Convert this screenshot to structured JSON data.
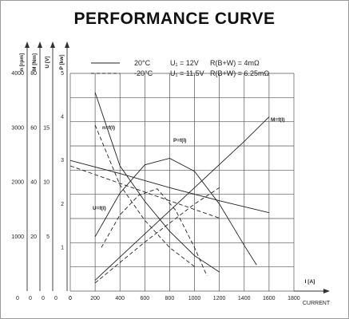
{
  "chart_data": {
    "type": "line",
    "title": "PERFORMANCE CURVE",
    "xlabel_unit": "I [A]",
    "xlabel": "CURRENT",
    "x_ticks": [
      "0",
      "200",
      "400",
      "600",
      "800",
      "1000",
      "1200",
      "1400",
      "1600",
      "1800"
    ],
    "xlim": [
      0,
      1800
    ],
    "y_axes": [
      {
        "label": "n [rpm]",
        "ticks": [
          "1000",
          "2000",
          "3000",
          "4000"
        ],
        "range": [
          0,
          4000
        ]
      },
      {
        "label": "M [Nm]",
        "ticks": [
          "20",
          "40",
          "60",
          "80"
        ],
        "range": [
          0,
          80
        ]
      },
      {
        "label": "U [V]",
        "ticks": [
          "5",
          "10",
          "15"
        ],
        "range": [
          0,
          20
        ]
      },
      {
        "label": "P [kw]",
        "ticks": [
          "1",
          "2",
          "3",
          "4",
          "5"
        ],
        "range": [
          0,
          5
        ]
      }
    ],
    "legend": [
      {
        "temp": "20°C",
        "voltage": "U₁ = 12V",
        "resistance": "R(B+W) = 4mΩ",
        "style": "solid"
      },
      {
        "temp": "-20°C",
        "voltage": "U₁ = 11.5V",
        "resistance": "R(B+W) = 6.25mΩ",
        "style": "dashed"
      }
    ],
    "series": [
      {
        "name": "n=f(I)",
        "axis": "n [rpm]",
        "style": "solid",
        "x": [
          200,
          400,
          600,
          800,
          1000,
          1200
        ],
        "y": [
          3650,
          2300,
          1650,
          1100,
          650,
          350
        ]
      },
      {
        "name": "n=f(I)",
        "axis": "n [rpm]",
        "style": "dashed",
        "x": [
          200,
          400,
          600,
          800,
          1000
        ],
        "y": [
          3050,
          1950,
          1300,
          800,
          450
        ]
      },
      {
        "name": "M=f(I)",
        "axis": "M [Nm]",
        "style": "solid",
        "x": [
          200,
          600,
          1000,
          1400,
          1600
        ],
        "y": [
          4,
          21,
          38,
          55,
          64
        ]
      },
      {
        "name": "M=f(I)",
        "axis": "M [Nm]",
        "style": "dashed",
        "x": [
          200,
          600,
          1000,
          1200
        ],
        "y": [
          3,
          18,
          32,
          38
        ]
      },
      {
        "name": "U=f(I)",
        "axis": "U [V]",
        "style": "solid",
        "x": [
          0,
          400,
          800,
          1200,
          1600
        ],
        "y": [
          12,
          10.8,
          9.5,
          8.3,
          7.2
        ]
      },
      {
        "name": "U=f(I)",
        "axis": "U [V]",
        "style": "dashed",
        "x": [
          0,
          400,
          800,
          1200
        ],
        "y": [
          11.5,
          9.9,
          8.3,
          6.7
        ]
      },
      {
        "name": "P=f(I)",
        "axis": "P [kw]",
        "style": "solid",
        "x": [
          200,
          400,
          600,
          800,
          1000,
          1200,
          1400,
          1500
        ],
        "y": [
          1.25,
          2.25,
          2.9,
          3.05,
          2.75,
          2.0,
          1.05,
          0.6
        ]
      },
      {
        "name": "P=f(I)",
        "axis": "P [kw]",
        "style": "dashed",
        "x": [
          250,
          400,
          550,
          700,
          850,
          1000,
          1100
        ],
        "y": [
          1.0,
          1.75,
          2.2,
          2.35,
          1.85,
          1.0,
          0.35
        ]
      }
    ],
    "curve_labels": [
      "n=f(I)",
      "M=f(I)",
      "P=f(I)",
      "U=f(I)"
    ],
    "grid": true
  }
}
